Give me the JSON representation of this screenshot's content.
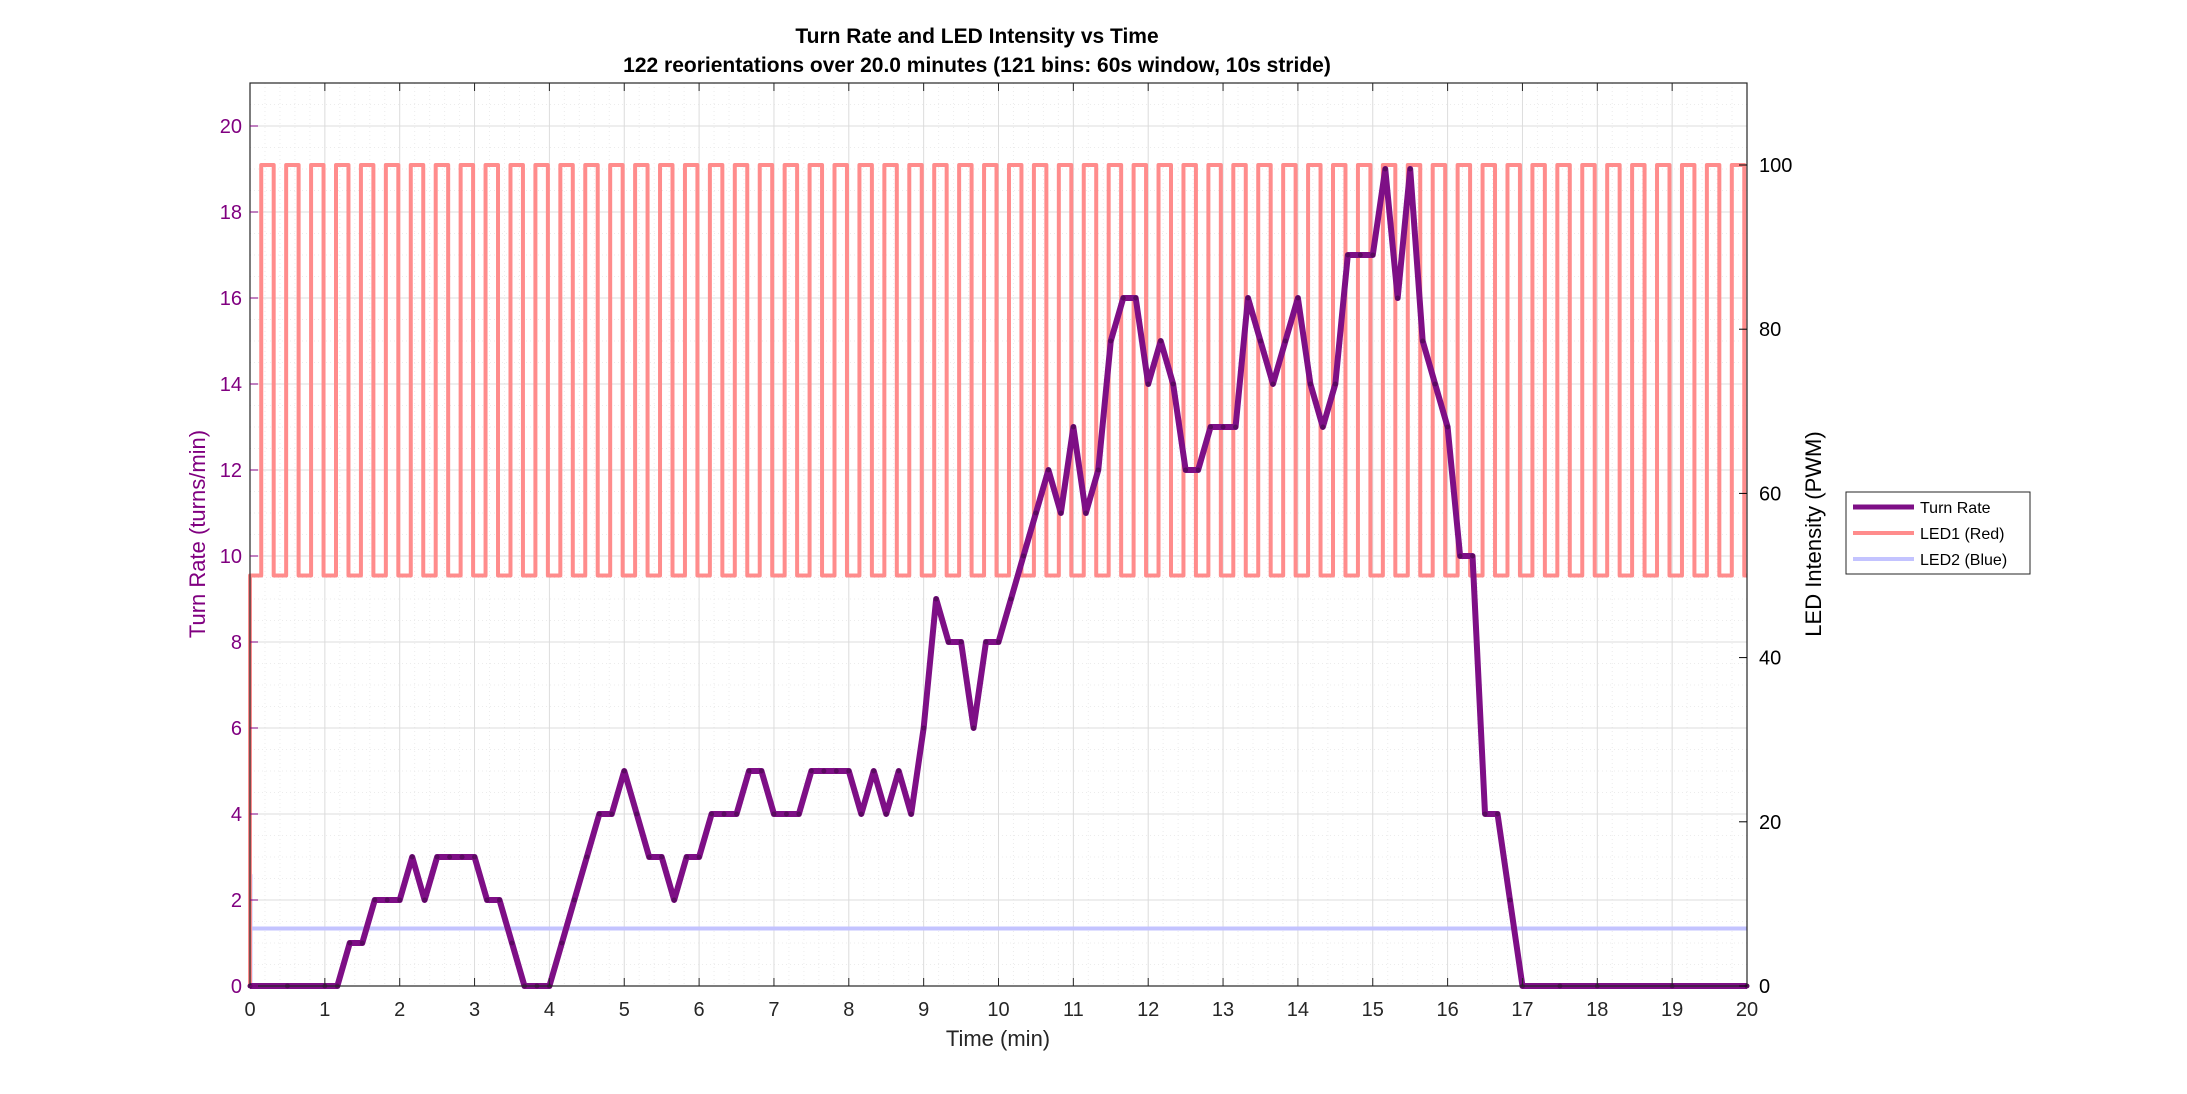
{
  "chart_data": {
    "type": "line",
    "title": "Turn Rate and LED Intensity vs Time",
    "subtitle": "122 reorientations over 20.0 minutes (121 bins: 60s window, 10s stride)",
    "xlabel": "Time (min)",
    "ylabel_left": "Turn Rate (turns/min)",
    "ylabel_right": "LED Intensity (PWM)",
    "xlim": [
      0,
      20
    ],
    "ylim_left": [
      0,
      21
    ],
    "ylim_right": [
      0,
      100
    ],
    "x_ticks": [
      "0",
      "1",
      "2",
      "3",
      "4",
      "5",
      "6",
      "7",
      "8",
      "9",
      "10",
      "11",
      "12",
      "13",
      "14",
      "15",
      "16",
      "17",
      "18",
      "19",
      "20"
    ],
    "y_left_ticks": [
      "0",
      "2",
      "4",
      "6",
      "8",
      "10",
      "12",
      "14",
      "16",
      "18",
      "20"
    ],
    "y_right_ticks": [
      "0",
      "20",
      "40",
      "60",
      "80",
      "100"
    ],
    "grid": true,
    "minor_grid": true,
    "legend_position": "outside-right",
    "colors": {
      "turn_rate": "#7e0f86",
      "led1": "#ff8c8c",
      "led2": "#c3c3ff",
      "left_axis": "#800080",
      "right_axis": "#000000"
    },
    "series": [
      {
        "name": "Turn Rate",
        "axis": "left",
        "x": [
          0,
          0.5,
          1,
          1.167,
          1.333,
          1.5,
          1.667,
          1.833,
          2,
          2.167,
          2.333,
          2.5,
          2.667,
          2.833,
          3,
          3.167,
          3.333,
          3.5,
          3.667,
          3.833,
          4,
          4.167,
          4.333,
          4.5,
          4.667,
          4.833,
          5,
          5.167,
          5.333,
          5.5,
          5.667,
          5.833,
          6,
          6.167,
          6.333,
          6.5,
          6.667,
          6.833,
          7,
          7.167,
          7.333,
          7.5,
          7.667,
          7.833,
          8,
          8.167,
          8.333,
          8.5,
          8.667,
          8.833,
          9,
          9.167,
          9.333,
          9.5,
          9.667,
          9.833,
          10,
          10.167,
          10.333,
          10.5,
          10.667,
          10.833,
          11,
          11.167,
          11.333,
          11.5,
          11.667,
          11.833,
          12,
          12.167,
          12.333,
          12.5,
          12.667,
          12.833,
          13,
          13.167,
          13.333,
          13.5,
          13.667,
          13.833,
          14,
          14.167,
          14.333,
          14.5,
          14.667,
          14.833,
          15,
          15.167,
          15.333,
          15.5,
          15.667,
          15.833,
          16,
          16.167,
          16.333,
          16.5,
          16.667,
          16.833,
          17,
          17.5,
          18,
          19,
          20
        ],
        "y": [
          0,
          0,
          0,
          0,
          1,
          1,
          2,
          2,
          2,
          3,
          2,
          3,
          3,
          3,
          3,
          2,
          2,
          1,
          0,
          0,
          0,
          1,
          2,
          3,
          4,
          4,
          5,
          4,
          3,
          3,
          2,
          3,
          3,
          4,
          4,
          4,
          5,
          5,
          4,
          4,
          4,
          5,
          5,
          5,
          5,
          4,
          5,
          4,
          5,
          4,
          6,
          9,
          8,
          8,
          6,
          8,
          8,
          9,
          10,
          11,
          12,
          11,
          13,
          11,
          12,
          15,
          16,
          16,
          14,
          15,
          14,
          12,
          12,
          13,
          13,
          13,
          16,
          15,
          14,
          15,
          16,
          14,
          13,
          14,
          17,
          17,
          17,
          19,
          16,
          19,
          15,
          14,
          13,
          10,
          10,
          4,
          4,
          2,
          0,
          0,
          0,
          0,
          0
        ]
      },
      {
        "name": "LED1 (Red)",
        "axis": "right",
        "waveform": "square",
        "low": 50,
        "high": 100,
        "period_min": 0.333,
        "x_start": 0.15,
        "x_end": 20
      },
      {
        "name": "LED2 (Blue)",
        "axis": "right",
        "value": 7
      }
    ]
  }
}
